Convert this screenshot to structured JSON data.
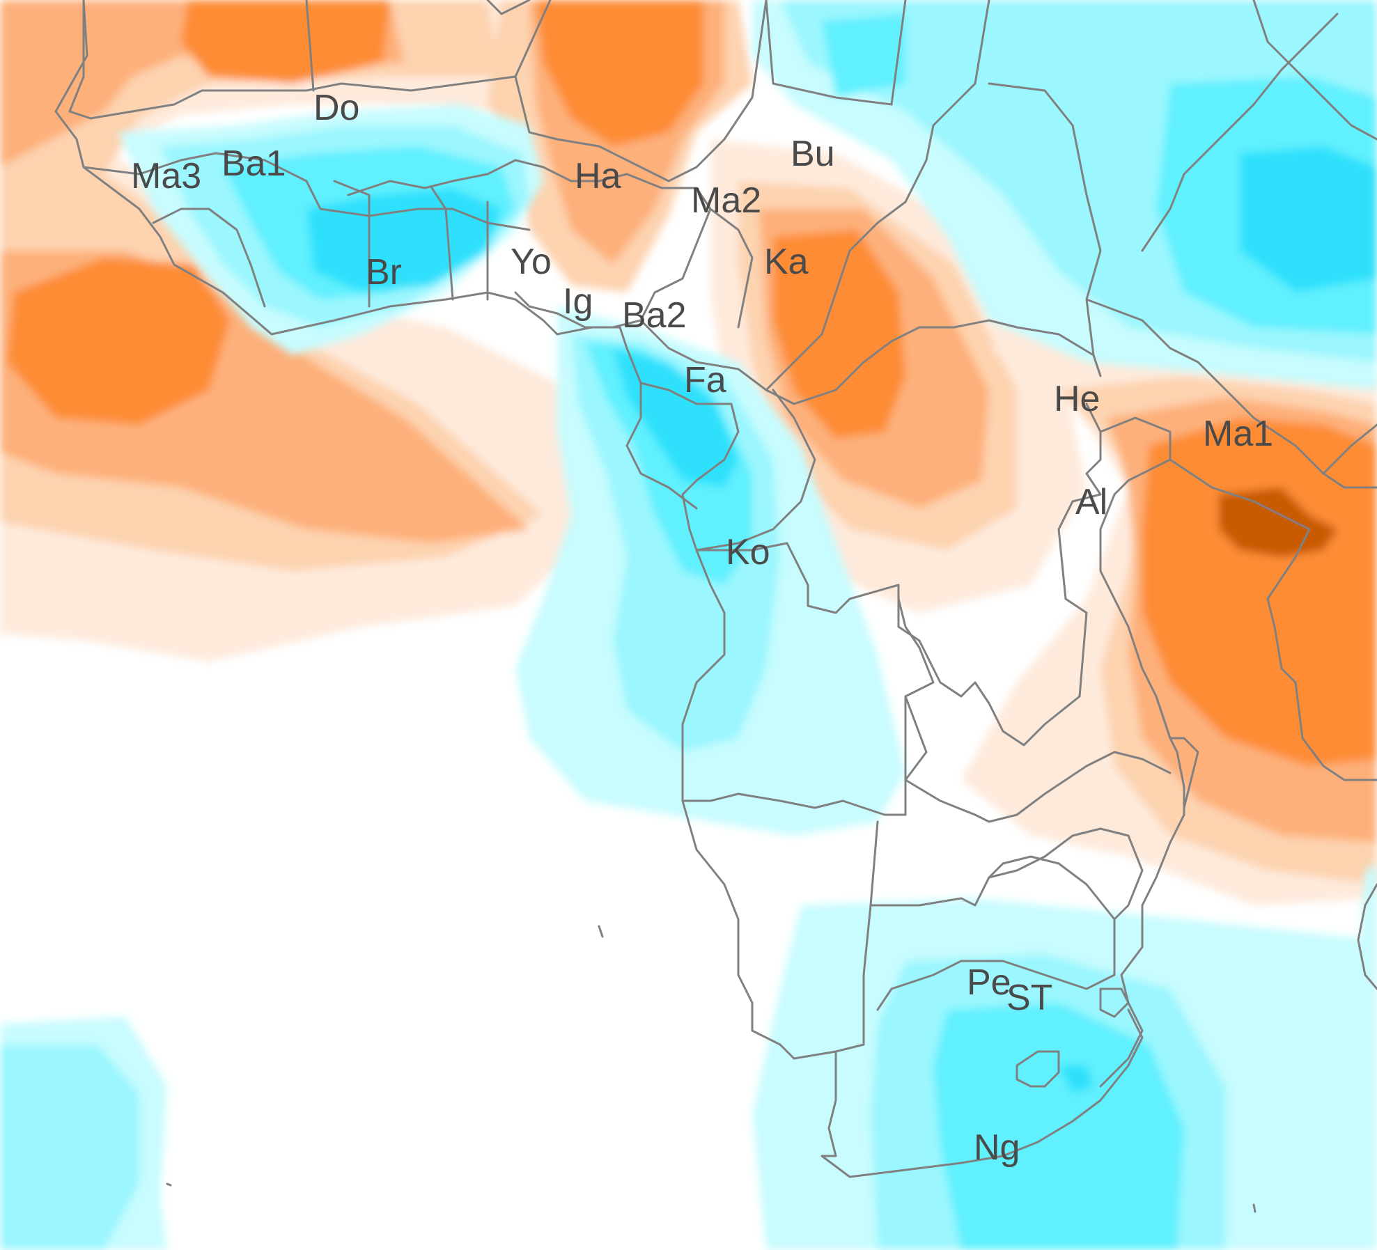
{
  "map": {
    "labels": [
      {
        "id": "Do",
        "text": "Do"
      },
      {
        "id": "Ma3",
        "text": "Ma3"
      },
      {
        "id": "Ba1",
        "text": "Ba1"
      },
      {
        "id": "Br",
        "text": "Br"
      },
      {
        "id": "Yo",
        "text": "Yo"
      },
      {
        "id": "Ig",
        "text": "Ig"
      },
      {
        "id": "Ha",
        "text": "Ha"
      },
      {
        "id": "Bu",
        "text": "Bu"
      },
      {
        "id": "Ma2",
        "text": "Ma2"
      },
      {
        "id": "Ka",
        "text": "Ka"
      },
      {
        "id": "Ba2",
        "text": "Ba2"
      },
      {
        "id": "Fa",
        "text": "Fa"
      },
      {
        "id": "He",
        "text": "He"
      },
      {
        "id": "Ma1",
        "text": "Ma1"
      },
      {
        "id": "Al",
        "text": "Al"
      },
      {
        "id": "Ko",
        "text": "Ko"
      },
      {
        "id": "Pe",
        "text": "Pe"
      },
      {
        "id": "ST",
        "text": "ST"
      },
      {
        "id": "Ng",
        "text": "Ng"
      }
    ],
    "palette": {
      "orange_darkest": "#c85a00",
      "orange_dark": "#fd8c34",
      "orange_mid": "#fdb07a",
      "orange_light": "#fdd3b0",
      "orange_pale": "#feeadb",
      "cyan_darkest": "#2ee0fc",
      "cyan_dark": "#60f0fe",
      "cyan_mid": "#9bf6fe",
      "cyan_light": "#c8fcfe",
      "neutral": "#ffffff",
      "border": "#808080",
      "label": "#4a4a4a"
    }
  }
}
